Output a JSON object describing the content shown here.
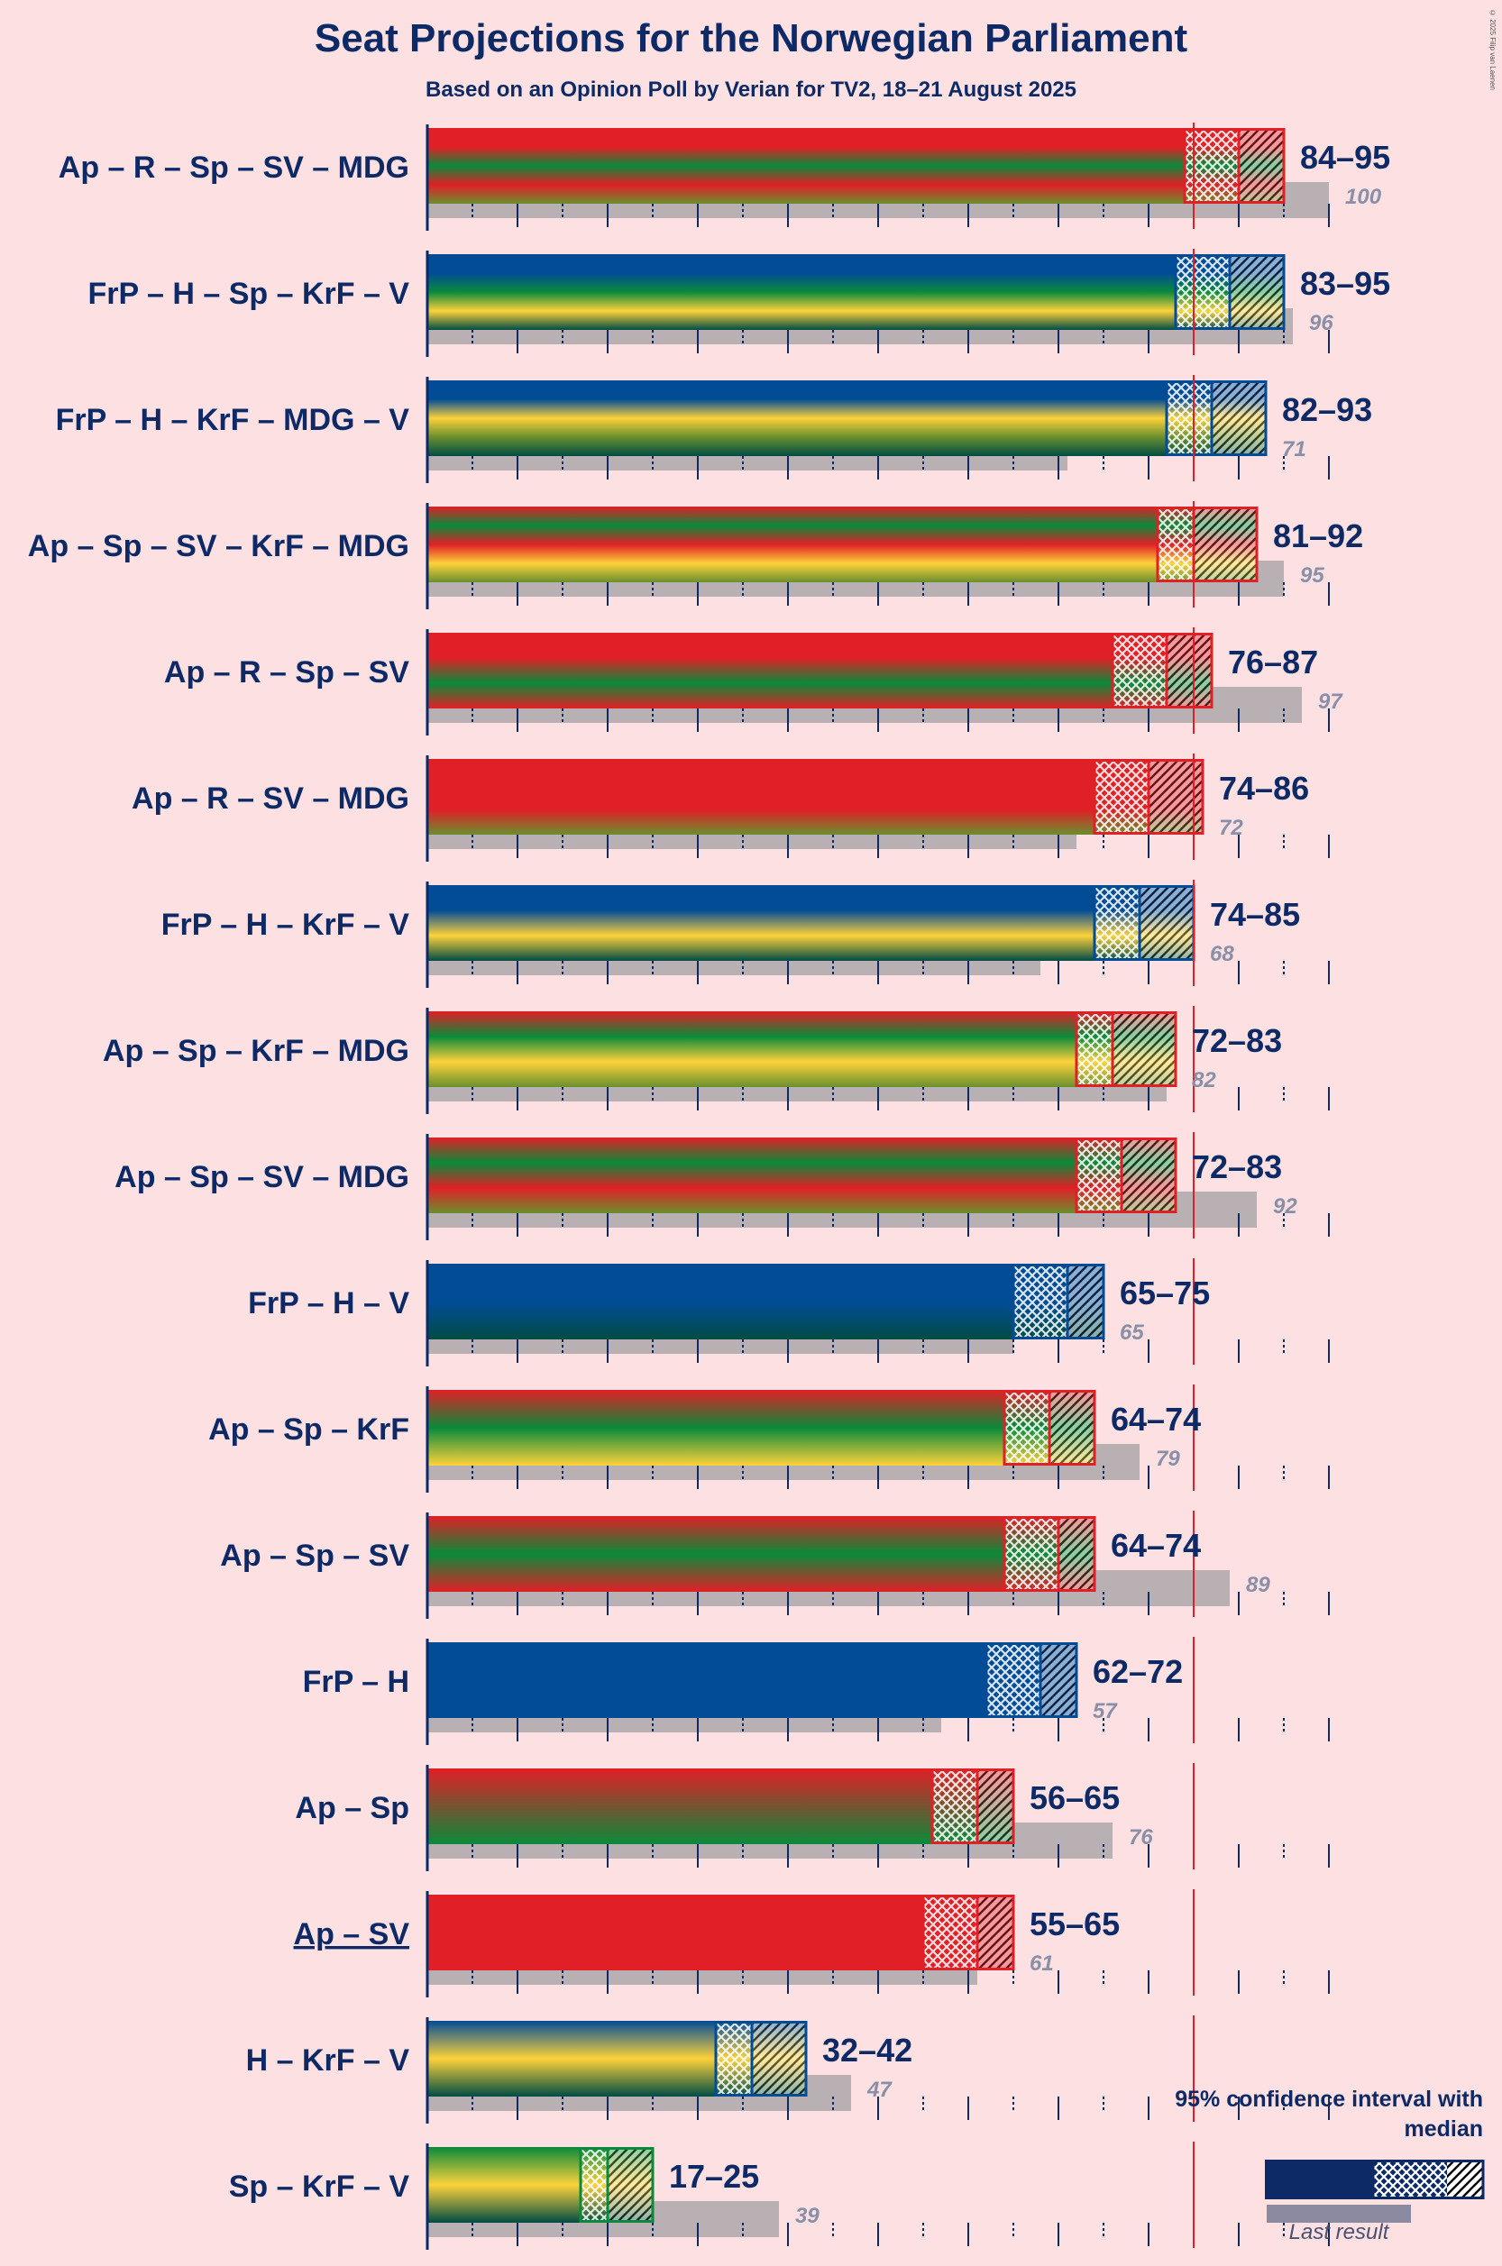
{
  "title": "Seat Projections for the Norwegian Parliament",
  "subtitle": "Based on an Opinion Poll by Verian for TV2, 18–21 August 2025",
  "copyright": "© 2025 Filip van Laenen",
  "legend": {
    "title": "95% confidence interval with median",
    "last_result": "Last result"
  },
  "colors": {
    "Ap": "#e11f26",
    "R": "#e11f26",
    "SV": "#e11f26",
    "Sp": "#0a8a3a",
    "MDG": "#6a8f2e",
    "FrP": "#024c96",
    "H": "#024c96",
    "KrF": "#fdd23a",
    "V": "#004c44",
    "last_result_bar": "#b9b0b4",
    "majority_line": "#e11f26",
    "background": "#fde0e2",
    "text": "#0d2a66"
  },
  "chart_data": {
    "type": "bar",
    "orientation": "horizontal",
    "title": "Seat Projections for the Norwegian Parliament",
    "subtitle": "Based on an Opinion Poll by Verian for TV2, 18–21 August 2025",
    "xlim": [
      0,
      100
    ],
    "majority_threshold": 85,
    "tick_step": 5,
    "coalitions": [
      {
        "label": "Ap – R – Sp – SV – MDG",
        "parties": [
          "Ap",
          "R",
          "Sp",
          "SV",
          "MDG"
        ],
        "low": 84,
        "median": 90,
        "high": 95,
        "range_label": "84–95",
        "last": 100,
        "underlined": false
      },
      {
        "label": "FrP – H – Sp – KrF – V",
        "parties": [
          "FrP",
          "H",
          "Sp",
          "KrF",
          "V"
        ],
        "low": 83,
        "median": 89,
        "high": 95,
        "range_label": "83–95",
        "last": 96,
        "underlined": false
      },
      {
        "label": "FrP – H – KrF – MDG – V",
        "parties": [
          "FrP",
          "H",
          "KrF",
          "MDG",
          "V"
        ],
        "low": 82,
        "median": 87,
        "high": 93,
        "range_label": "82–93",
        "last": 71,
        "underlined": false
      },
      {
        "label": "Ap – Sp – SV – KrF – MDG",
        "parties": [
          "Ap",
          "Sp",
          "SV",
          "KrF",
          "MDG"
        ],
        "low": 81,
        "median": 85,
        "high": 92,
        "range_label": "81–92",
        "last": 95,
        "underlined": false
      },
      {
        "label": "Ap – R – Sp – SV",
        "parties": [
          "Ap",
          "R",
          "Sp",
          "SV"
        ],
        "low": 76,
        "median": 82,
        "high": 87,
        "range_label": "76–87",
        "last": 97,
        "underlined": false
      },
      {
        "label": "Ap – R – SV – MDG",
        "parties": [
          "Ap",
          "R",
          "SV",
          "MDG"
        ],
        "low": 74,
        "median": 80,
        "high": 86,
        "range_label": "74–86",
        "last": 72,
        "underlined": false
      },
      {
        "label": "FrP – H – KrF – V",
        "parties": [
          "FrP",
          "H",
          "KrF",
          "V"
        ],
        "low": 74,
        "median": 79,
        "high": 85,
        "range_label": "74–85",
        "last": 68,
        "underlined": false
      },
      {
        "label": "Ap – Sp – KrF – MDG",
        "parties": [
          "Ap",
          "Sp",
          "KrF",
          "MDG"
        ],
        "low": 72,
        "median": 76,
        "high": 83,
        "range_label": "72–83",
        "last": 82,
        "underlined": false
      },
      {
        "label": "Ap – Sp – SV – MDG",
        "parties": [
          "Ap",
          "Sp",
          "SV",
          "MDG"
        ],
        "low": 72,
        "median": 77,
        "high": 83,
        "range_label": "72–83",
        "last": 92,
        "underlined": false
      },
      {
        "label": "FrP – H – V",
        "parties": [
          "FrP",
          "H",
          "V"
        ],
        "low": 65,
        "median": 71,
        "high": 75,
        "range_label": "65–75",
        "last": 65,
        "underlined": false
      },
      {
        "label": "Ap – Sp – KrF",
        "parties": [
          "Ap",
          "Sp",
          "KrF"
        ],
        "low": 64,
        "median": 69,
        "high": 74,
        "range_label": "64–74",
        "last": 79,
        "underlined": false
      },
      {
        "label": "Ap – Sp – SV",
        "parties": [
          "Ap",
          "Sp",
          "SV"
        ],
        "low": 64,
        "median": 70,
        "high": 74,
        "range_label": "64–74",
        "last": 89,
        "underlined": false
      },
      {
        "label": "FrP – H",
        "parties": [
          "FrP",
          "H"
        ],
        "low": 62,
        "median": 68,
        "high": 72,
        "range_label": "62–72",
        "last": 57,
        "underlined": false
      },
      {
        "label": "Ap – Sp",
        "parties": [
          "Ap",
          "Sp"
        ],
        "low": 56,
        "median": 61,
        "high": 65,
        "range_label": "56–65",
        "last": 76,
        "underlined": false
      },
      {
        "label": "Ap – SV",
        "parties": [
          "Ap",
          "SV"
        ],
        "low": 55,
        "median": 61,
        "high": 65,
        "range_label": "55–65",
        "last": 61,
        "underlined": true
      },
      {
        "label": "H – KrF – V",
        "parties": [
          "H",
          "KrF",
          "V"
        ],
        "low": 32,
        "median": 36,
        "high": 42,
        "range_label": "32–42",
        "last": 47,
        "underlined": false
      },
      {
        "label": "Sp – KrF – V",
        "parties": [
          "Sp",
          "KrF",
          "V"
        ],
        "low": 17,
        "median": 20,
        "high": 25,
        "range_label": "17–25",
        "last": 39,
        "underlined": false
      }
    ]
  }
}
